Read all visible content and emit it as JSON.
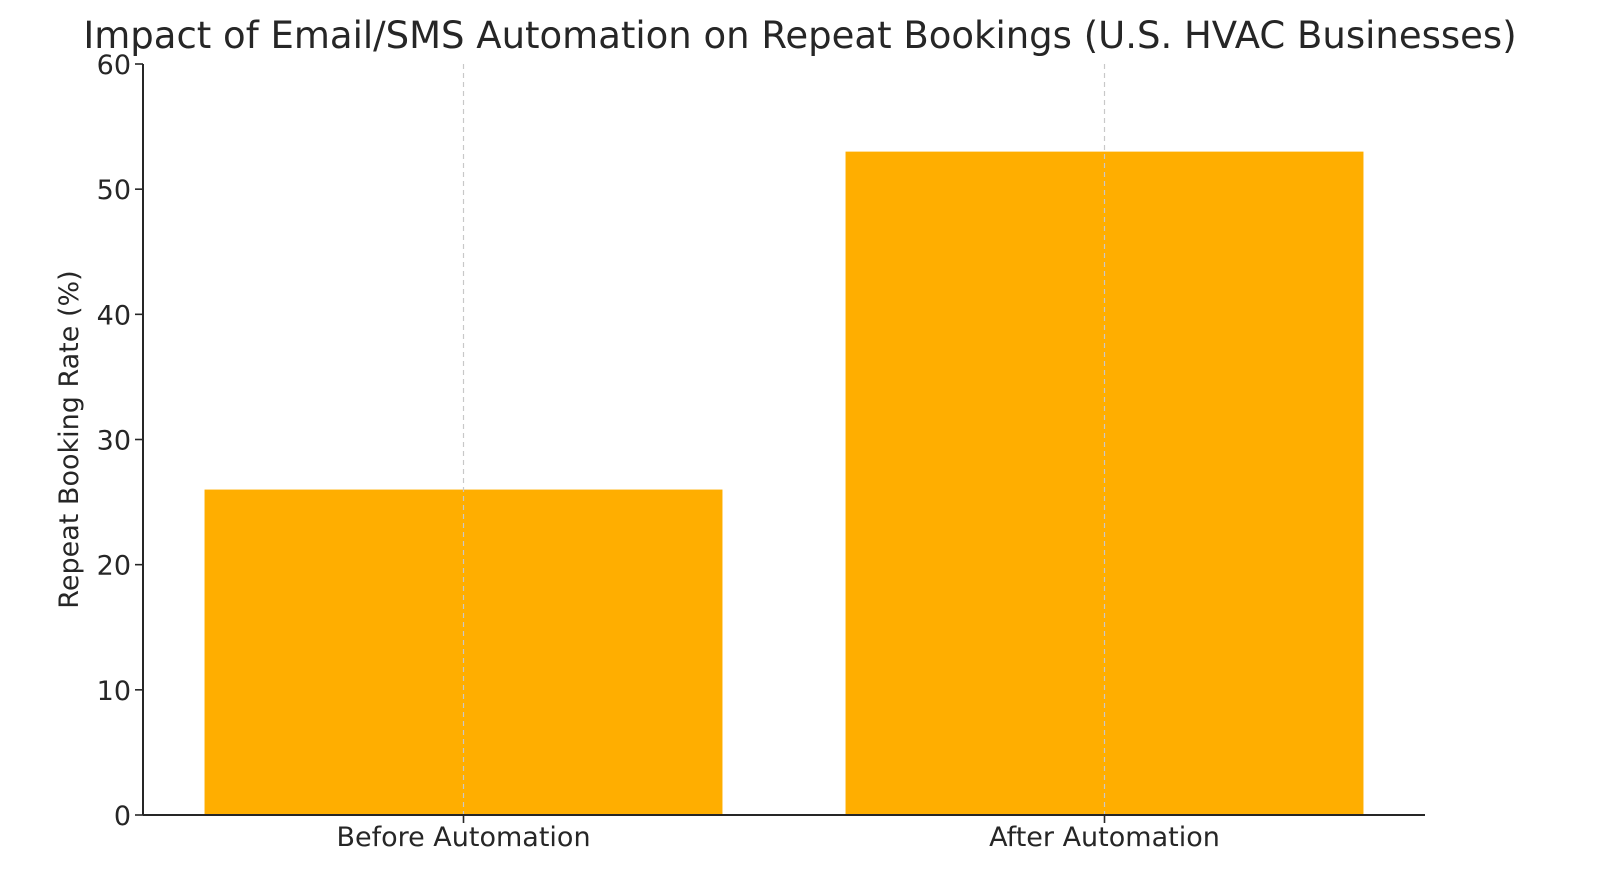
{
  "chart_data": {
    "type": "bar",
    "title": "Impact of Email/SMS Automation on Repeat Bookings (U.S. HVAC Businesses)",
    "xlabel": "",
    "ylabel": "Repeat Booking Rate (%)",
    "categories": [
      "Before Automation",
      "After Automation"
    ],
    "values": [
      26,
      53
    ],
    "ylim": [
      0,
      60
    ],
    "yticks": [
      "0",
      "10",
      "20",
      "30",
      "40",
      "50",
      "60"
    ],
    "grid": "x-axis dashed vertical lines",
    "legend": "none"
  },
  "colors": {
    "bar": "#FFAE00",
    "text": "#262626",
    "grid": "#c8c8c8"
  }
}
